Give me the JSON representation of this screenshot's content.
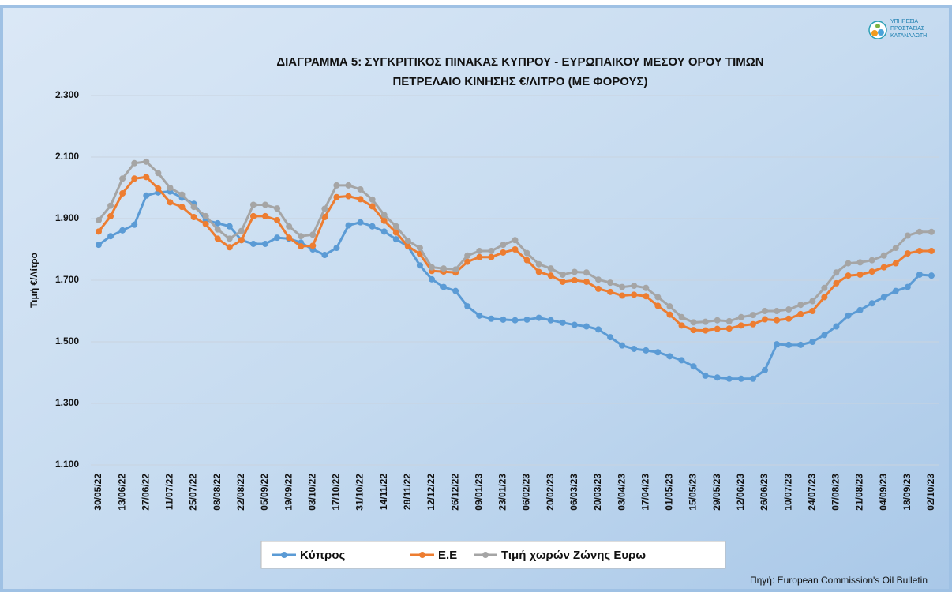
{
  "logo": [
    "ΥΠΗΡΕΣΙΑ",
    "ΠΡΟΣΤΑΣΙΑΣ",
    "ΚΑΤΑΝΑΛΩΤΗ"
  ],
  "source": "Πηγή: European Commission's Oil Bulletin",
  "chart_data": {
    "type": "line",
    "title": [
      "ΔΙΑΓΡΑΜΜΑ 5: ΣΥΓΚΡΙΤΙΚΟΣ ΠΙΝΑΚΑΣ ΚΥΠΡΟΥ - ΕΥΡΩΠΑΙΚΟΥ ΜΕΣΟΥ ΟΡΟΥ ΤΙΜΩΝ",
      "ΠΕΤΡΕΛΑΙΟ ΚΙΝΗΣΗΣ €/ΛΙΤΡΟ (ΜΕ ΦΟΡΟΥΣ)"
    ],
    "y_label": "Τιμή €/Λίτρο",
    "ylim": [
      1.1,
      2.3
    ],
    "yticks": [
      {
        "value": 1.1,
        "label": "1.100"
      },
      {
        "value": 1.3,
        "label": "1.300"
      },
      {
        "value": 1.5,
        "label": "1.500"
      },
      {
        "value": 1.7,
        "label": "1.700"
      },
      {
        "value": 1.9,
        "label": "1.900"
      },
      {
        "value": 2.1,
        "label": "2.100"
      },
      {
        "value": 2.3,
        "label": "2.300"
      }
    ],
    "grid": true,
    "legend": "bottom",
    "categories": [
      "30/05/22",
      null,
      "13/06/22",
      null,
      "27/06/22",
      null,
      "11/07/22",
      null,
      "25/07/22",
      null,
      "08/08/22",
      null,
      "22/08/22",
      null,
      "05/09/22",
      null,
      "19/09/22",
      null,
      "03/10/22",
      null,
      "17/10/22",
      null,
      "31/10/22",
      null,
      "14/11/22",
      null,
      "28/11/22",
      null,
      "12/12/22",
      null,
      "26/12/22",
      null,
      "09/01/23",
      null,
      "23/01/23",
      null,
      "06/02/23",
      null,
      "20/02/23",
      null,
      "06/03/23",
      null,
      "20/03/23",
      null,
      "03/04/23",
      null,
      "17/04/23",
      null,
      "01/05/23",
      null,
      "15/05/23",
      null,
      "29/05/23",
      null,
      "12/06/23",
      null,
      "26/06/23",
      null,
      "10/07/23",
      null,
      "24/07/23",
      null,
      "07/08/23",
      null,
      "21/08/23",
      null,
      "04/09/23",
      null,
      "18/09/23",
      null,
      "02/10/23"
    ],
    "series": [
      {
        "name": "Κύπρος",
        "color": "#5b9bd5",
        "values": [
          1.815,
          1.843,
          1.862,
          1.88,
          1.975,
          1.985,
          1.988,
          1.968,
          1.948,
          1.895,
          1.885,
          1.875,
          1.83,
          1.818,
          1.818,
          1.838,
          1.835,
          1.822,
          1.8,
          1.782,
          1.805,
          1.878,
          1.888,
          1.875,
          1.858,
          1.833,
          1.81,
          1.748,
          1.703,
          1.678,
          1.665,
          1.615,
          1.585,
          1.575,
          1.572,
          1.57,
          1.572,
          1.578,
          1.57,
          1.562,
          1.555,
          1.55,
          1.54,
          1.515,
          1.488,
          1.477,
          1.472,
          1.466,
          1.453,
          1.44,
          1.42,
          1.39,
          1.384,
          1.38,
          1.38,
          1.38,
          1.408,
          1.492,
          1.49,
          1.49,
          1.5,
          1.522,
          1.55,
          1.585,
          1.603,
          1.625,
          1.645,
          1.665,
          1.678,
          1.718,
          1.715
        ]
      },
      {
        "name": "Ε.Ε",
        "color": "#ed7d31",
        "values": [
          1.858,
          1.908,
          1.982,
          2.03,
          2.035,
          1.998,
          1.953,
          1.938,
          1.905,
          1.882,
          1.835,
          1.807,
          1.83,
          1.908,
          1.908,
          1.895,
          1.838,
          1.81,
          1.812,
          1.905,
          1.97,
          1.973,
          1.963,
          1.94,
          1.893,
          1.855,
          1.81,
          1.785,
          1.73,
          1.728,
          1.725,
          1.76,
          1.775,
          1.775,
          1.79,
          1.8,
          1.765,
          1.727,
          1.715,
          1.695,
          1.7,
          1.695,
          1.672,
          1.662,
          1.65,
          1.653,
          1.648,
          1.617,
          1.588,
          1.553,
          1.538,
          1.537,
          1.542,
          1.543,
          1.553,
          1.557,
          1.573,
          1.57,
          1.575,
          1.59,
          1.6,
          1.645,
          1.69,
          1.715,
          1.718,
          1.728,
          1.742,
          1.755,
          1.787,
          1.795,
          1.795
        ]
      },
      {
        "name": "Τιμή χωρών Ζώνης Ευρω",
        "color": "#a5a5a5",
        "values": [
          1.895,
          1.942,
          2.03,
          2.08,
          2.085,
          2.048,
          2.0,
          1.978,
          1.938,
          1.908,
          1.865,
          1.835,
          1.86,
          1.945,
          1.945,
          1.933,
          1.875,
          1.843,
          1.848,
          1.932,
          2.008,
          2.008,
          1.995,
          1.962,
          1.912,
          1.875,
          1.828,
          1.805,
          1.742,
          1.738,
          1.735,
          1.78,
          1.795,
          1.795,
          1.815,
          1.83,
          1.788,
          1.752,
          1.738,
          1.718,
          1.727,
          1.725,
          1.702,
          1.692,
          1.678,
          1.682,
          1.675,
          1.645,
          1.615,
          1.58,
          1.563,
          1.565,
          1.57,
          1.567,
          1.58,
          1.587,
          1.6,
          1.6,
          1.605,
          1.62,
          1.632,
          1.675,
          1.725,
          1.755,
          1.758,
          1.765,
          1.78,
          1.805,
          1.845,
          1.857,
          1.857
        ]
      }
    ]
  }
}
